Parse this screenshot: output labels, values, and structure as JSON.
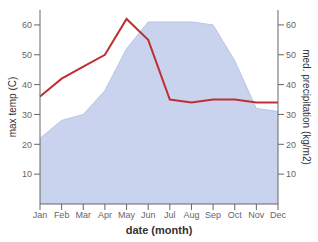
{
  "chart_data": {
    "type": "line",
    "x_label": "date (month)",
    "y_label": "max temp (C)",
    "y2_label": "med. precipitation (kg/m2)",
    "categories": [
      "Jan",
      "Feb",
      "Mar",
      "Apr",
      "May",
      "Jun",
      "Jul",
      "Aug",
      "Sep",
      "Oct",
      "Nov",
      "Dec"
    ],
    "series": [
      {
        "type": "area",
        "axis": "y2",
        "color": "#b8c4e8",
        "values": [
          22,
          28,
          30,
          38,
          52,
          61,
          61,
          61,
          60,
          48,
          32,
          31
        ]
      },
      {
        "type": "line",
        "color": "#c03030",
        "values": [
          36,
          42,
          46,
          50,
          62,
          55,
          35,
          34,
          35,
          35,
          34,
          34
        ]
      }
    ],
    "ylim": [
      0,
      65
    ],
    "yticks": [
      10,
      20,
      30,
      40,
      50,
      60
    ],
    "y2lim": [
      0,
      65
    ],
    "y2ticks": [
      10,
      20,
      30,
      40,
      50,
      60
    ],
    "grid": false
  }
}
